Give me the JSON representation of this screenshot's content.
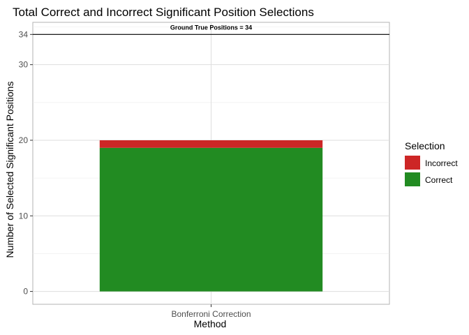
{
  "chart_data": {
    "type": "bar",
    "stacked": true,
    "title": "Total Correct and Incorrect Significant Position Selections",
    "xlabel": "Method",
    "ylabel": "Number of Selected Significant Positions",
    "categories": [
      "Bonferroni Correction"
    ],
    "series": [
      {
        "name": "Correct",
        "values": [
          19
        ],
        "color": "#228b22"
      },
      {
        "name": "Incorrect",
        "values": [
          1
        ],
        "color": "#cd2626"
      }
    ],
    "ylim": [
      -1.7,
      35.6
    ],
    "yticks": [
      0,
      10,
      20,
      30,
      34
    ],
    "reference_line": {
      "value": 34,
      "label": "Ground True Positions = 34"
    },
    "legend": {
      "title": "Selection",
      "position": "right",
      "order": [
        "Incorrect",
        "Correct"
      ]
    },
    "grid": true
  }
}
